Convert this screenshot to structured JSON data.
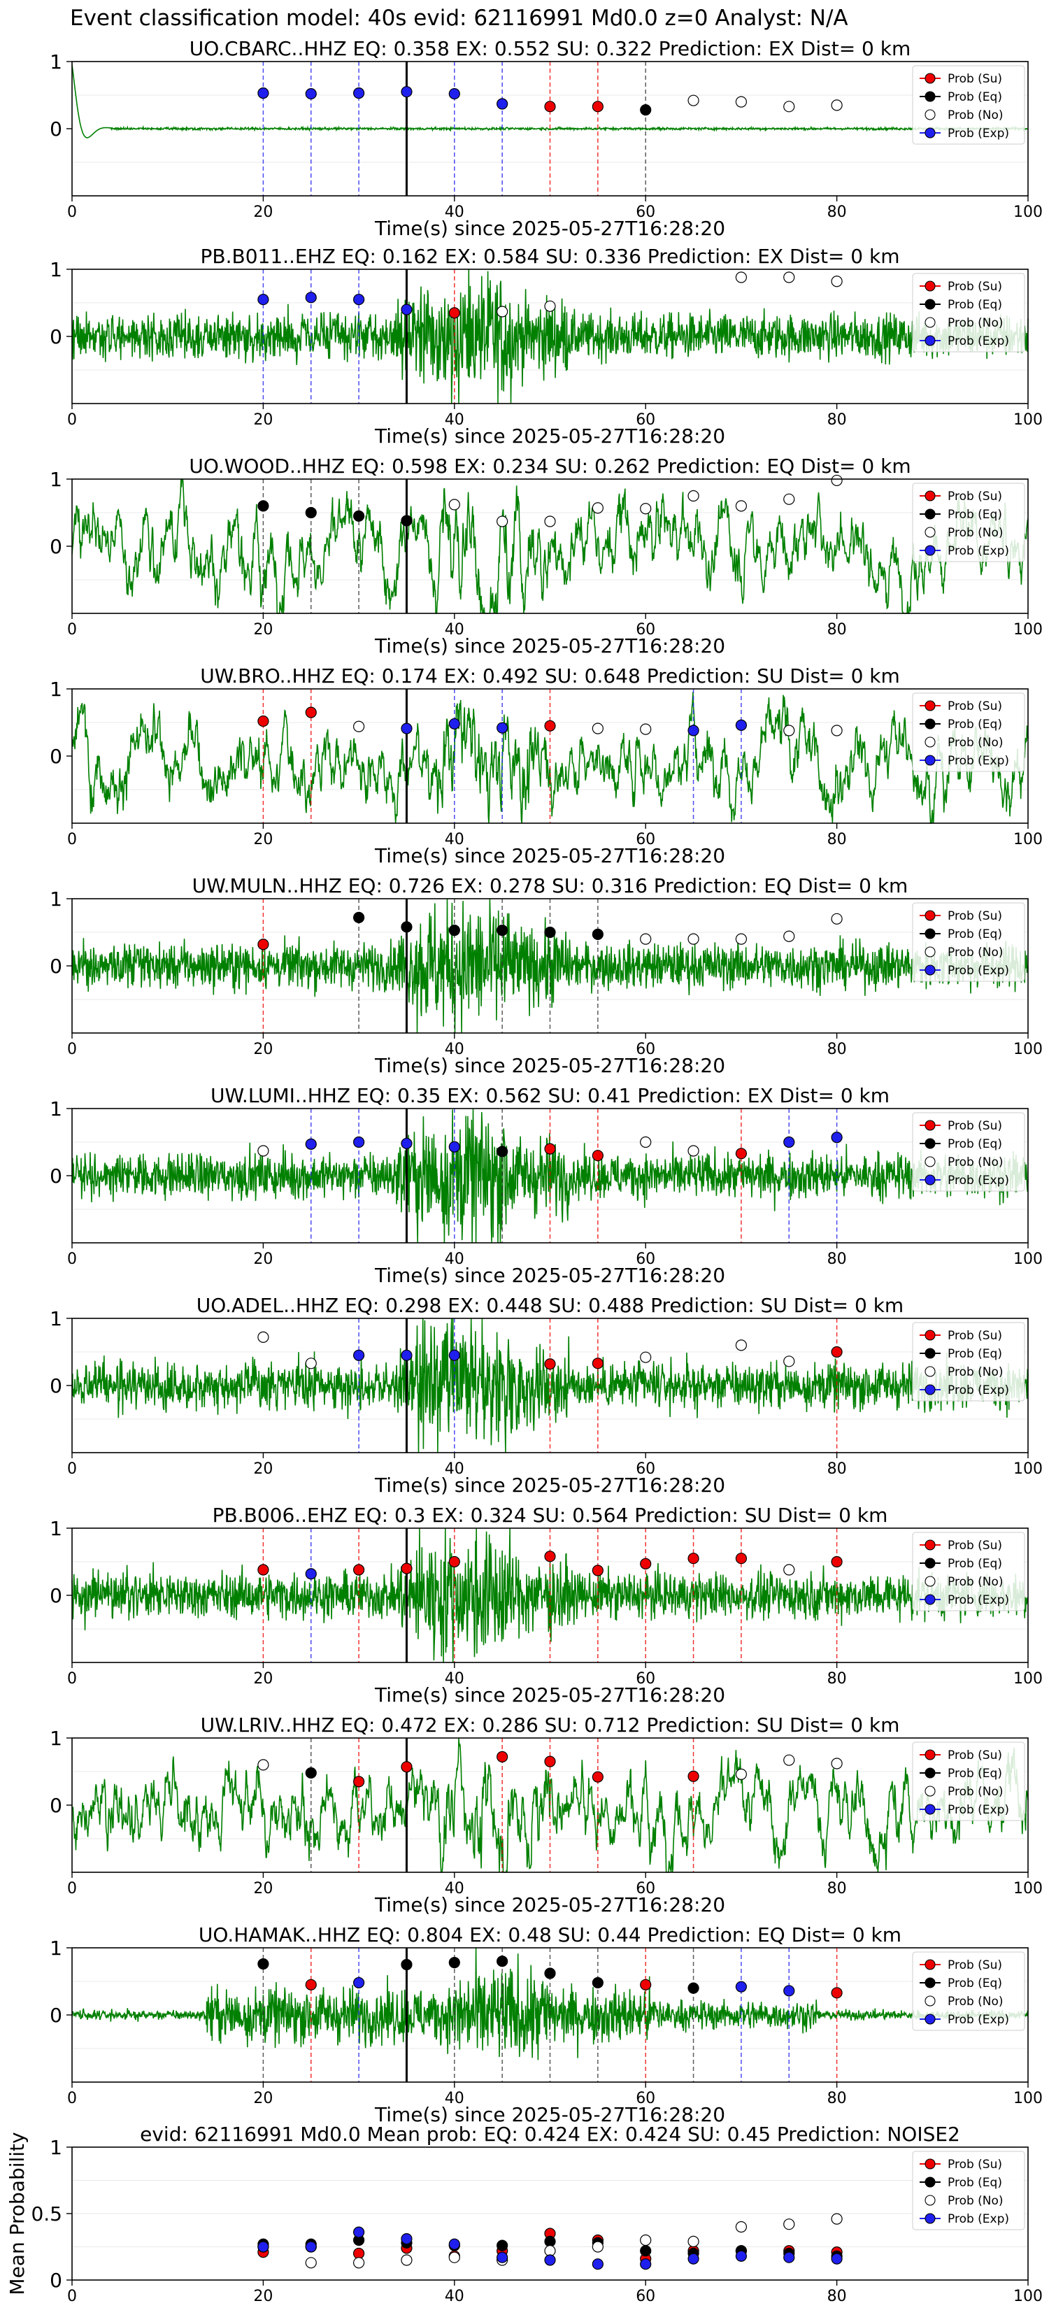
{
  "suptitle": "Event classification model: 40s evid: 62116991 Md0.0 z=0 Analyst: N/A",
  "xlabel_common": "Time(s) since 2025-05-27T16:28:20",
  "legend_labels": [
    "Prob (Su)",
    "Prob (Eq)",
    "Prob (No)",
    "Prob (Exp)"
  ],
  "colors": {
    "su": "#ee0000",
    "eq": "#000000",
    "no": "#ffffff",
    "exp": "#1f1fee",
    "waveform": "#008000",
    "grid": "#e8e8e8"
  },
  "chart_data": [
    {
      "type": "scatter",
      "station": "UO.CBARC..HHZ",
      "title": "UO.CBARC..HHZ   EQ: 0.358  EX: 0.552  SU: 0.322   Prediction: EX    Dist= 0 km",
      "xlim": [
        0,
        100
      ],
      "ylim": [
        -1,
        1
      ],
      "yticks": [
        1,
        0
      ],
      "xticks": [
        0,
        20,
        40,
        60,
        80,
        100
      ],
      "waveform_style": "quiet",
      "pick_time": 35,
      "points": [
        {
          "x": 20,
          "class": "exp",
          "y": 0.53
        },
        {
          "x": 25,
          "class": "exp",
          "y": 0.52
        },
        {
          "x": 30,
          "class": "exp",
          "y": 0.53
        },
        {
          "x": 35,
          "class": "exp",
          "y": 0.55
        },
        {
          "x": 40,
          "class": "exp",
          "y": 0.52
        },
        {
          "x": 45,
          "class": "exp",
          "y": 0.37
        },
        {
          "x": 50,
          "class": "su",
          "y": 0.33
        },
        {
          "x": 55,
          "class": "su",
          "y": 0.33
        },
        {
          "x": 60,
          "class": "eq",
          "y": 0.28
        },
        {
          "x": 65,
          "class": "no",
          "y": 0.42
        },
        {
          "x": 70,
          "class": "no",
          "y": 0.4
        },
        {
          "x": 75,
          "class": "no",
          "y": 0.33
        },
        {
          "x": 80,
          "class": "no",
          "y": 0.35
        }
      ]
    },
    {
      "type": "scatter",
      "station": "PB.B011..EHZ",
      "title": "PB.B011..EHZ   EQ: 0.162  EX: 0.584  SU: 0.336   Prediction: EX    Dist= 0 km",
      "xlim": [
        0,
        100
      ],
      "ylim": [
        -1,
        1
      ],
      "yticks": [
        1,
        0
      ],
      "xticks": [
        0,
        20,
        40,
        60,
        80,
        100
      ],
      "waveform_style": "noisy",
      "pick_time": 35,
      "points": [
        {
          "x": 20,
          "class": "exp",
          "y": 0.55
        },
        {
          "x": 25,
          "class": "exp",
          "y": 0.58
        },
        {
          "x": 30,
          "class": "exp",
          "y": 0.55
        },
        {
          "x": 35,
          "class": "exp",
          "y": 0.4
        },
        {
          "x": 40,
          "class": "su",
          "y": 0.35
        },
        {
          "x": 45,
          "class": "no",
          "y": 0.37
        },
        {
          "x": 50,
          "class": "no",
          "y": 0.45
        },
        {
          "x": 70,
          "class": "no",
          "y": 0.88
        },
        {
          "x": 75,
          "class": "no",
          "y": 0.88
        },
        {
          "x": 80,
          "class": "no",
          "y": 0.82
        }
      ]
    },
    {
      "type": "scatter",
      "station": "UO.WOOD..HHZ",
      "title": "UO.WOOD..HHZ   EQ: 0.598  EX: 0.234  SU: 0.262   Prediction: EQ    Dist= 0 km",
      "xlim": [
        0,
        100
      ],
      "ylim": [
        -1,
        1
      ],
      "yticks": [
        1,
        0
      ],
      "xticks": [
        0,
        20,
        40,
        60,
        80,
        100
      ],
      "waveform_style": "swell",
      "pick_time": 35,
      "points": [
        {
          "x": 20,
          "class": "eq",
          "y": 0.6
        },
        {
          "x": 25,
          "class": "eq",
          "y": 0.5
        },
        {
          "x": 30,
          "class": "eq",
          "y": 0.45
        },
        {
          "x": 35,
          "class": "eq",
          "y": 0.38
        },
        {
          "x": 40,
          "class": "no",
          "y": 0.62
        },
        {
          "x": 45,
          "class": "no",
          "y": 0.37
        },
        {
          "x": 50,
          "class": "no",
          "y": 0.37
        },
        {
          "x": 55,
          "class": "no",
          "y": 0.57
        },
        {
          "x": 60,
          "class": "no",
          "y": 0.56
        },
        {
          "x": 65,
          "class": "no",
          "y": 0.75
        },
        {
          "x": 70,
          "class": "no",
          "y": 0.6
        },
        {
          "x": 75,
          "class": "no",
          "y": 0.7
        },
        {
          "x": 80,
          "class": "no",
          "y": 0.98
        }
      ]
    },
    {
      "type": "scatter",
      "station": "UW.BRO..HHZ",
      "title": "UW.BRO..HHZ   EQ: 0.174  EX: 0.492  SU: 0.648   Prediction: SU    Dist= 0 km",
      "xlim": [
        0,
        100
      ],
      "ylim": [
        -1,
        1
      ],
      "yticks": [
        1,
        0
      ],
      "xticks": [
        0,
        20,
        40,
        60,
        80,
        100
      ],
      "waveform_style": "swell",
      "pick_time": 35,
      "points": [
        {
          "x": 20,
          "class": "su",
          "y": 0.52
        },
        {
          "x": 25,
          "class": "su",
          "y": 0.65
        },
        {
          "x": 30,
          "class": "no",
          "y": 0.44
        },
        {
          "x": 35,
          "class": "exp",
          "y": 0.41
        },
        {
          "x": 40,
          "class": "exp",
          "y": 0.48
        },
        {
          "x": 45,
          "class": "exp",
          "y": 0.42
        },
        {
          "x": 50,
          "class": "su",
          "y": 0.45
        },
        {
          "x": 55,
          "class": "no",
          "y": 0.41
        },
        {
          "x": 60,
          "class": "no",
          "y": 0.4
        },
        {
          "x": 65,
          "class": "exp",
          "y": 0.38
        },
        {
          "x": 70,
          "class": "exp",
          "y": 0.46
        },
        {
          "x": 75,
          "class": "no",
          "y": 0.38
        },
        {
          "x": 80,
          "class": "no",
          "y": 0.38
        }
      ]
    },
    {
      "type": "scatter",
      "station": "UW.MULN..HHZ",
      "title": "UW.MULN..HHZ   EQ: 0.726  EX: 0.278  SU: 0.316   Prediction: EQ    Dist= 0 km",
      "xlim": [
        0,
        100
      ],
      "ylim": [
        -1,
        1
      ],
      "yticks": [
        1,
        0
      ],
      "xticks": [
        0,
        20,
        40,
        60,
        80,
        100
      ],
      "waveform_style": "noisy",
      "pick_time": 35,
      "points": [
        {
          "x": 20,
          "class": "su",
          "y": 0.32
        },
        {
          "x": 30,
          "class": "eq",
          "y": 0.72
        },
        {
          "x": 35,
          "class": "eq",
          "y": 0.58
        },
        {
          "x": 40,
          "class": "eq",
          "y": 0.53
        },
        {
          "x": 45,
          "class": "eq",
          "y": 0.53
        },
        {
          "x": 50,
          "class": "eq",
          "y": 0.5
        },
        {
          "x": 55,
          "class": "eq",
          "y": 0.47
        },
        {
          "x": 60,
          "class": "no",
          "y": 0.4
        },
        {
          "x": 65,
          "class": "no",
          "y": 0.4
        },
        {
          "x": 70,
          "class": "no",
          "y": 0.4
        },
        {
          "x": 75,
          "class": "no",
          "y": 0.44
        },
        {
          "x": 80,
          "class": "no",
          "y": 0.7
        }
      ]
    },
    {
      "type": "scatter",
      "station": "UW.LUMI..HHZ",
      "title": "UW.LUMI..HHZ   EQ: 0.35  EX: 0.562  SU: 0.41   Prediction: EX    Dist= 0 km",
      "xlim": [
        0,
        100
      ],
      "ylim": [
        -1,
        1
      ],
      "yticks": [
        1,
        0
      ],
      "xticks": [
        0,
        20,
        40,
        60,
        80,
        100
      ],
      "waveform_style": "noisy",
      "pick_time": 35,
      "points": [
        {
          "x": 20,
          "class": "no",
          "y": 0.37
        },
        {
          "x": 25,
          "class": "exp",
          "y": 0.47
        },
        {
          "x": 30,
          "class": "exp",
          "y": 0.5
        },
        {
          "x": 35,
          "class": "exp",
          "y": 0.48
        },
        {
          "x": 40,
          "class": "exp",
          "y": 0.43
        },
        {
          "x": 45,
          "class": "eq",
          "y": 0.36
        },
        {
          "x": 50,
          "class": "su",
          "y": 0.4
        },
        {
          "x": 55,
          "class": "su",
          "y": 0.3
        },
        {
          "x": 60,
          "class": "no",
          "y": 0.5
        },
        {
          "x": 65,
          "class": "no",
          "y": 0.37
        },
        {
          "x": 70,
          "class": "su",
          "y": 0.33
        },
        {
          "x": 75,
          "class": "exp",
          "y": 0.5
        },
        {
          "x": 80,
          "class": "exp",
          "y": 0.57
        }
      ]
    },
    {
      "type": "scatter",
      "station": "UO.ADEL..HHZ",
      "title": "UO.ADEL..HHZ   EQ: 0.298  EX: 0.448  SU: 0.488   Prediction: SU    Dist= 0 km",
      "xlim": [
        0,
        100
      ],
      "ylim": [
        -1,
        1
      ],
      "yticks": [
        1,
        0
      ],
      "xticks": [
        0,
        20,
        40,
        60,
        80,
        100
      ],
      "waveform_style": "noisy",
      "pick_time": 35,
      "points": [
        {
          "x": 20,
          "class": "no",
          "y": 0.72
        },
        {
          "x": 25,
          "class": "no",
          "y": 0.33
        },
        {
          "x": 30,
          "class": "exp",
          "y": 0.45
        },
        {
          "x": 35,
          "class": "exp",
          "y": 0.45
        },
        {
          "x": 40,
          "class": "exp",
          "y": 0.45
        },
        {
          "x": 50,
          "class": "su",
          "y": 0.32
        },
        {
          "x": 55,
          "class": "su",
          "y": 0.33
        },
        {
          "x": 60,
          "class": "no",
          "y": 0.42
        },
        {
          "x": 70,
          "class": "no",
          "y": 0.6
        },
        {
          "x": 75,
          "class": "no",
          "y": 0.36
        },
        {
          "x": 80,
          "class": "su",
          "y": 0.5
        }
      ]
    },
    {
      "type": "scatter",
      "station": "PB.B006..EHZ",
      "title": "PB.B006..EHZ   EQ: 0.3  EX: 0.324  SU: 0.564   Prediction: SU    Dist= 0 km",
      "xlim": [
        0,
        100
      ],
      "ylim": [
        -1,
        1
      ],
      "yticks": [
        1,
        0
      ],
      "xticks": [
        0,
        20,
        40,
        60,
        80,
        100
      ],
      "waveform_style": "noisy",
      "pick_time": 35,
      "points": [
        {
          "x": 20,
          "class": "su",
          "y": 0.38
        },
        {
          "x": 25,
          "class": "exp",
          "y": 0.32
        },
        {
          "x": 30,
          "class": "su",
          "y": 0.38
        },
        {
          "x": 35,
          "class": "su",
          "y": 0.4
        },
        {
          "x": 40,
          "class": "su",
          "y": 0.5
        },
        {
          "x": 50,
          "class": "su",
          "y": 0.58
        },
        {
          "x": 55,
          "class": "su",
          "y": 0.37
        },
        {
          "x": 60,
          "class": "su",
          "y": 0.47
        },
        {
          "x": 65,
          "class": "su",
          "y": 0.55
        },
        {
          "x": 70,
          "class": "su",
          "y": 0.55
        },
        {
          "x": 75,
          "class": "no",
          "y": 0.38
        },
        {
          "x": 80,
          "class": "su",
          "y": 0.5
        }
      ]
    },
    {
      "type": "scatter",
      "station": "UW.LRIV..HHZ",
      "title": "UW.LRIV..HHZ   EQ: 0.472  EX: 0.286  SU: 0.712   Prediction: SU    Dist= 0 km",
      "xlim": [
        0,
        100
      ],
      "ylim": [
        -1,
        1
      ],
      "yticks": [
        1,
        0
      ],
      "xticks": [
        0,
        20,
        40,
        60,
        80,
        100
      ],
      "waveform_style": "swell",
      "pick_time": 35,
      "points": [
        {
          "x": 20,
          "class": "no",
          "y": 0.6
        },
        {
          "x": 25,
          "class": "eq",
          "y": 0.48
        },
        {
          "x": 30,
          "class": "su",
          "y": 0.35
        },
        {
          "x": 35,
          "class": "su",
          "y": 0.57
        },
        {
          "x": 45,
          "class": "su",
          "y": 0.72
        },
        {
          "x": 50,
          "class": "su",
          "y": 0.65
        },
        {
          "x": 55,
          "class": "su",
          "y": 0.42
        },
        {
          "x": 65,
          "class": "su",
          "y": 0.43
        },
        {
          "x": 70,
          "class": "no",
          "y": 0.46
        },
        {
          "x": 75,
          "class": "no",
          "y": 0.67
        },
        {
          "x": 80,
          "class": "no",
          "y": 0.62
        }
      ]
    },
    {
      "type": "scatter",
      "station": "UO.HAMAK..HHZ",
      "title": "UO.HAMAK..HHZ   EQ: 0.804  EX: 0.48  SU: 0.44   Prediction: EQ    Dist= 0 km",
      "xlim": [
        0,
        100
      ],
      "ylim": [
        -1,
        1
      ],
      "yticks": [
        1,
        0
      ],
      "xticks": [
        0,
        20,
        40,
        60,
        80,
        100
      ],
      "waveform_style": "bursty",
      "pick_time": 35,
      "points": [
        {
          "x": 20,
          "class": "eq",
          "y": 0.76
        },
        {
          "x": 25,
          "class": "su",
          "y": 0.45
        },
        {
          "x": 30,
          "class": "exp",
          "y": 0.48
        },
        {
          "x": 35,
          "class": "eq",
          "y": 0.75
        },
        {
          "x": 40,
          "class": "eq",
          "y": 0.78
        },
        {
          "x": 45,
          "class": "eq",
          "y": 0.8
        },
        {
          "x": 50,
          "class": "eq",
          "y": 0.62
        },
        {
          "x": 55,
          "class": "eq",
          "y": 0.48
        },
        {
          "x": 60,
          "class": "su",
          "y": 0.45
        },
        {
          "x": 65,
          "class": "eq",
          "y": 0.4
        },
        {
          "x": 70,
          "class": "exp",
          "y": 0.42
        },
        {
          "x": 75,
          "class": "exp",
          "y": 0.36
        },
        {
          "x": 80,
          "class": "su",
          "y": 0.33
        }
      ]
    },
    {
      "type": "scatter",
      "station": "mean",
      "title": "evid: 62116991  Md0.0   Mean prob:   EQ: 0.424  EX: 0.424  SU: 0.45   Prediction: NOISE2",
      "ylabel": "Mean Probability",
      "xlim": [
        0,
        100
      ],
      "ylim": [
        0,
        1
      ],
      "yticks": [
        1.0,
        0.5,
        0.0
      ],
      "xticks": [
        0,
        20,
        40,
        60,
        80,
        100
      ],
      "series": [
        {
          "name": "Prob (Su)",
          "class": "su",
          "x": [
            20,
            25,
            30,
            35,
            40,
            45,
            50,
            55,
            60,
            65,
            70,
            75,
            80
          ],
          "y": [
            0.21,
            0.25,
            0.2,
            0.24,
            0.18,
            0.22,
            0.35,
            0.3,
            0.16,
            0.22,
            0.22,
            0.22,
            0.21
          ]
        },
        {
          "name": "Prob (Eq)",
          "class": "eq",
          "x": [
            20,
            25,
            30,
            35,
            40,
            45,
            50,
            55,
            60,
            65,
            70,
            75,
            80
          ],
          "y": [
            0.27,
            0.27,
            0.3,
            0.28,
            0.26,
            0.26,
            0.29,
            0.28,
            0.22,
            0.2,
            0.22,
            0.2,
            0.18
          ]
        },
        {
          "name": "Prob (No)",
          "class": "no",
          "x": [
            20,
            25,
            30,
            35,
            40,
            45,
            50,
            55,
            60,
            65,
            70,
            75,
            80
          ],
          "y": [
            0.25,
            0.13,
            0.13,
            0.15,
            0.17,
            0.15,
            0.22,
            0.25,
            0.3,
            0.29,
            0.4,
            0.42,
            0.46
          ]
        },
        {
          "name": "Prob (Exp)",
          "class": "exp",
          "x": [
            20,
            25,
            30,
            35,
            40,
            45,
            50,
            55,
            60,
            65,
            70,
            75,
            80
          ],
          "y": [
            0.25,
            0.25,
            0.36,
            0.31,
            0.27,
            0.17,
            0.15,
            0.12,
            0.12,
            0.16,
            0.18,
            0.17,
            0.16
          ]
        }
      ]
    }
  ]
}
